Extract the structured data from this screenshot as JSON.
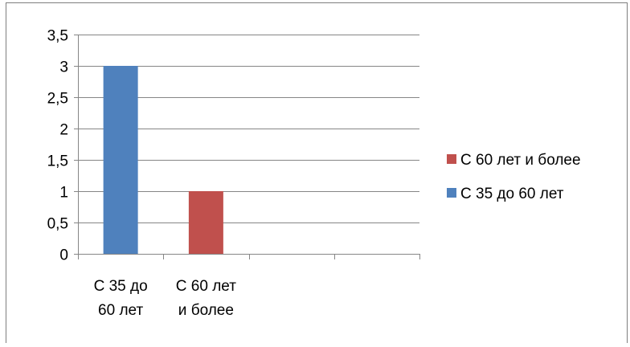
{
  "chart_data": {
    "type": "bar",
    "title": "",
    "xlabel": "",
    "ylabel": "",
    "categories": [
      [
        "С 35 до",
        "60 лет"
      ],
      [
        "С 60 лет",
        "и более"
      ],
      [],
      []
    ],
    "series": [
      {
        "name": "С 35 до 60 лет",
        "color": "#4f81bd",
        "values": [
          3,
          null,
          null,
          null
        ]
      },
      {
        "name": "С 60 лет и более",
        "color": "#c0504d",
        "values": [
          null,
          1,
          null,
          null
        ]
      }
    ],
    "ylim": [
      0,
      3.5
    ],
    "yticks": [
      "0",
      "0,5",
      "1",
      "1,5",
      "2",
      "2,5",
      "3",
      "3,5"
    ],
    "ytick_values": [
      0,
      0.5,
      1,
      1.5,
      2,
      2.5,
      3,
      3.5
    ],
    "grid": true,
    "legend": {
      "placement": "right",
      "entries": [
        {
          "label": "С 60 лет и более",
          "color": "#c0504d"
        },
        {
          "label": "С 35 до 60 лет",
          "color": "#4f81bd"
        }
      ]
    },
    "border_color": "#7f7f7f",
    "grid_color": "#868686",
    "axis_color": "#868686"
  }
}
